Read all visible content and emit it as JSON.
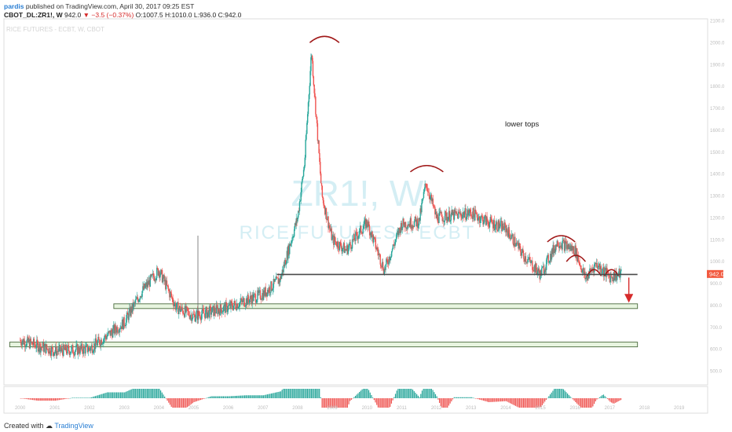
{
  "header": {
    "author": "pardis",
    "published": "published on TradingView.com, April 30, 2017 09:25 EST",
    "symbol": "CBOT_DL:ZR1!, W",
    "last": "942.0",
    "change": "▼ −3.5 (−0.37%)",
    "ohlc": "O:1007.5 H:1010.0 L:936.0 C:942.0"
  },
  "watermark": {
    "top_label": "RICE FUTURES - ECBT, W, CBOT",
    "big": "ZR1!, W",
    "sub": "RICE FUTURES - ECBT"
  },
  "annotation": {
    "text": "lower tops"
  },
  "colors": {
    "up": "#26a69a",
    "down": "#ef5350",
    "arc": "#a01818",
    "arrow": "#d62b2b",
    "zone_fill": "#e8f5e0",
    "zone_stroke": "#4a6a3c",
    "price_label": "#f2593f",
    "watermark": "#d4eef4"
  },
  "price_axis": {
    "current_label": "942.0"
  },
  "footer": {
    "created": "Created with",
    "brand": "TradingView"
  },
  "chart_data": {
    "type": "line",
    "interval": "weekly",
    "x": [
      2000,
      2001,
      2002,
      2003,
      2003.5,
      2004,
      2004.5,
      2005,
      2006,
      2007,
      2007.5,
      2008,
      2008.2,
      2008.4,
      2008.7,
      2009,
      2009.4,
      2010,
      2010.5,
      2011,
      2011.5,
      2011.7,
      2012,
      2012.5,
      2013,
      2013.5,
      2014,
      2014.5,
      2015,
      2015.5,
      2016,
      2016.3,
      2016.6,
      2017,
      2017.33
    ],
    "values": [
      640,
      590,
      600,
      720,
      860,
      960,
      790,
      750,
      790,
      850,
      920,
      1200,
      1450,
      1960,
      1300,
      1100,
      1050,
      1180,
      960,
      1170,
      1180,
      1360,
      1200,
      1210,
      1220,
      1180,
      1150,
      1030,
      940,
      1090,
      1050,
      920,
      990,
      930,
      942
    ],
    "ylim": [
      450,
      2100
    ],
    "xlim": [
      1999.6,
      2019.8
    ],
    "annotation": "lower tops",
    "support_line": 940,
    "support_zones": [
      {
        "from": 2002.7,
        "to": 2017.8,
        "value": 795
      },
      {
        "from": 1999.7,
        "to": 2017.8,
        "value": 620
      }
    ],
    "grid": false
  }
}
